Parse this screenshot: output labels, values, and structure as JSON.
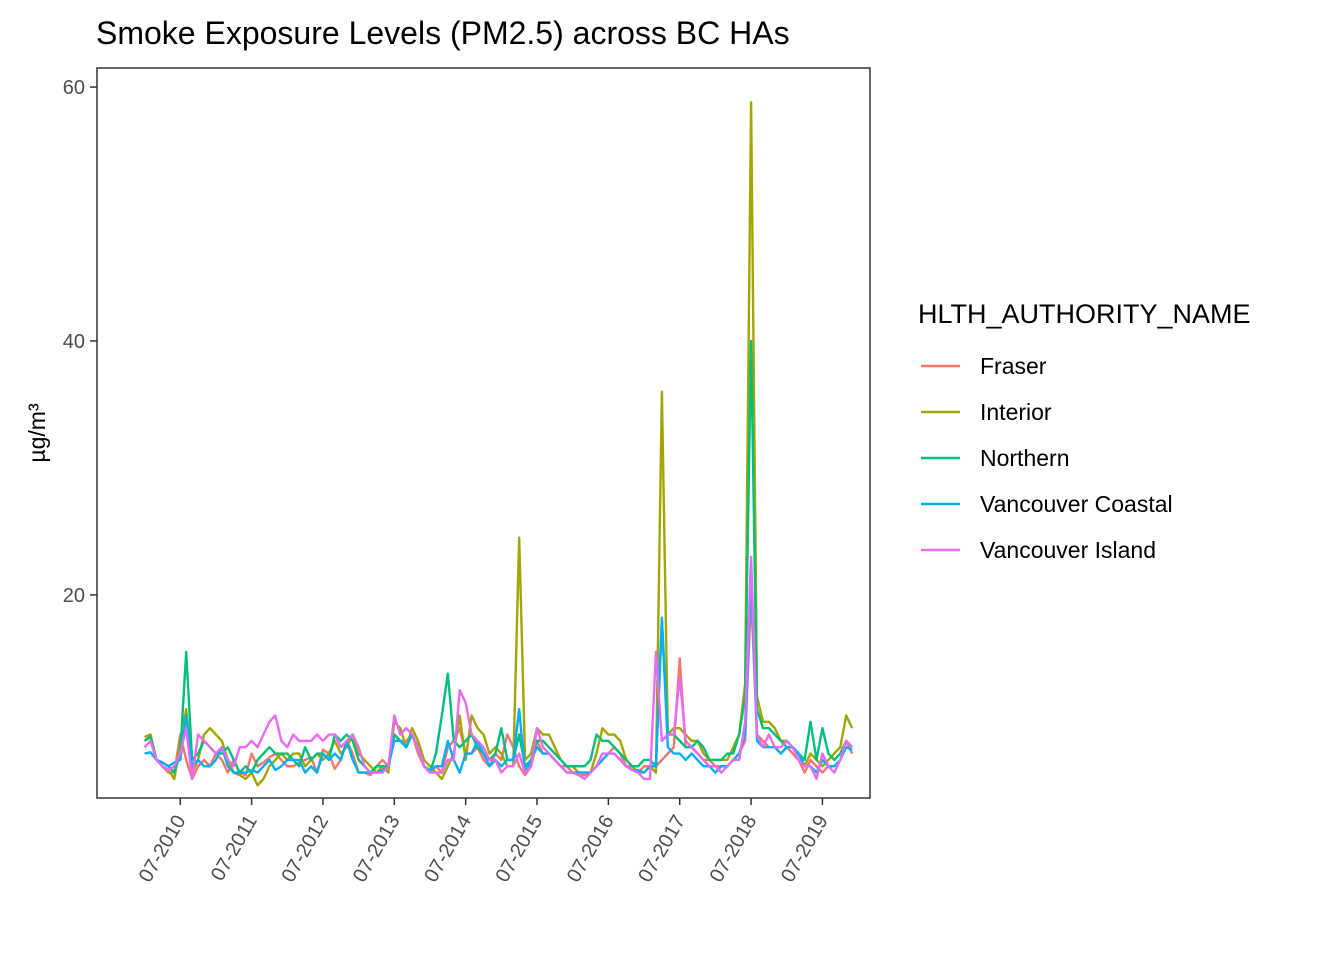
{
  "chart_data": {
    "type": "line",
    "title": "Smoke Exposure Levels (PM2.5) across BC HAs",
    "xlabel": "",
    "ylabel": "µg/m³",
    "ylim": [
      4,
      61.5
    ],
    "xlim": [
      "2009-05-01",
      "2020-03-01"
    ],
    "yticks": [
      20,
      40,
      60
    ],
    "xticks": [
      "2010-07",
      "2011-07",
      "2012-07",
      "2013-07",
      "2014-07",
      "2015-07",
      "2016-07",
      "2017-07",
      "2018-07",
      "2019-07"
    ],
    "xtick_labels": [
      "07-2010",
      "07-2011",
      "07-2012",
      "07-2013",
      "07-2014",
      "07-2015",
      "07-2016",
      "07-2017",
      "07-2018",
      "07-2019"
    ],
    "grid": false,
    "legend": {
      "title": "HLTH_AUTHORITY_NAME",
      "position": "right"
    },
    "x": [
      "2010-01",
      "2010-02",
      "2010-03",
      "2010-04",
      "2010-05",
      "2010-06",
      "2010-07",
      "2010-08",
      "2010-09",
      "2010-10",
      "2010-11",
      "2010-12",
      "2011-01",
      "2011-02",
      "2011-03",
      "2011-04",
      "2011-05",
      "2011-06",
      "2011-07",
      "2011-08",
      "2011-09",
      "2011-10",
      "2011-11",
      "2011-12",
      "2012-01",
      "2012-02",
      "2012-03",
      "2012-04",
      "2012-05",
      "2012-06",
      "2012-07",
      "2012-08",
      "2012-09",
      "2012-10",
      "2012-11",
      "2012-12",
      "2013-01",
      "2013-02",
      "2013-03",
      "2013-04",
      "2013-05",
      "2013-06",
      "2013-07",
      "2013-08",
      "2013-09",
      "2013-10",
      "2013-11",
      "2013-12",
      "2014-01",
      "2014-02",
      "2014-03",
      "2014-04",
      "2014-05",
      "2014-06",
      "2014-07",
      "2014-08",
      "2014-09",
      "2014-10",
      "2014-11",
      "2014-12",
      "2015-01",
      "2015-02",
      "2015-03",
      "2015-04",
      "2015-05",
      "2015-06",
      "2015-07",
      "2015-08",
      "2015-09",
      "2015-10",
      "2015-11",
      "2015-12",
      "2016-01",
      "2016-02",
      "2016-03",
      "2016-04",
      "2016-05",
      "2016-06",
      "2016-07",
      "2016-08",
      "2016-09",
      "2016-10",
      "2016-11",
      "2016-12",
      "2017-01",
      "2017-02",
      "2017-03",
      "2017-04",
      "2017-05",
      "2017-06",
      "2017-07",
      "2017-08",
      "2017-09",
      "2017-10",
      "2017-11",
      "2017-12",
      "2018-01",
      "2018-02",
      "2018-03",
      "2018-04",
      "2018-05",
      "2018-06",
      "2018-07",
      "2018-08",
      "2018-09",
      "2018-10",
      "2018-11",
      "2018-12",
      "2019-01",
      "2019-02",
      "2019-03",
      "2019-04",
      "2019-05",
      "2019-06",
      "2019-07",
      "2019-08",
      "2019-09",
      "2019-10",
      "2019-11",
      "2019-12"
    ],
    "series": [
      {
        "name": "Fraser",
        "color": "#F8766D",
        "values": [
          8.5,
          8.9,
          7.0,
          6.5,
          6.0,
          6.0,
          9.0,
          7.0,
          5.5,
          6.5,
          7.0,
          6.5,
          7.5,
          7.0,
          6.0,
          7.0,
          6.0,
          5.8,
          7.5,
          6.5,
          6.8,
          7.2,
          7.5,
          7.0,
          6.5,
          6.5,
          6.8,
          7.0,
          7.2,
          6.0,
          7.8,
          7.5,
          6.3,
          7.0,
          8.5,
          7.5,
          6.0,
          6.0,
          5.8,
          6.5,
          7.0,
          6.5,
          9.0,
          8.5,
          8.5,
          9.0,
          7.5,
          6.5,
          6.0,
          6.5,
          6.0,
          8.0,
          8.5,
          9.5,
          7.5,
          7.5,
          8.0,
          7.0,
          6.5,
          7.5,
          7.0,
          9.0,
          8.0,
          6.5,
          5.8,
          6.5,
          8.5,
          7.5,
          7.5,
          7.0,
          6.5,
          6.5,
          6.0,
          5.8,
          5.8,
          6.0,
          6.5,
          7.0,
          7.5,
          8.0,
          7.5,
          6.5,
          6.5,
          6.0,
          6.5,
          6.5,
          6.5,
          7.0,
          7.5,
          8.0,
          15.0,
          8.0,
          8.0,
          7.5,
          7.0,
          7.0,
          6.5,
          6.5,
          6.5,
          7.0,
          7.5,
          8.5,
          20.0,
          9.0,
          8.5,
          8.0,
          8.0,
          7.5,
          8.0,
          7.5,
          7.0,
          6.0,
          7.0,
          6.5,
          6.0,
          6.5,
          6.5,
          7.0,
          8.5,
          7.5
        ]
      },
      {
        "name": "Interior",
        "color": "#A3A500",
        "values": [
          8.8,
          9.0,
          7.0,
          6.5,
          6.2,
          5.5,
          8.5,
          11.0,
          6.0,
          7.0,
          9.0,
          9.5,
          9.0,
          8.5,
          7.0,
          6.0,
          5.8,
          5.5,
          6.0,
          5.0,
          5.5,
          6.5,
          7.0,
          7.5,
          7.0,
          7.5,
          7.5,
          6.5,
          7.0,
          7.5,
          7.0,
          7.5,
          8.5,
          7.5,
          8.0,
          9.0,
          7.5,
          7.0,
          6.5,
          6.0,
          6.5,
          6.0,
          10.0,
          9.5,
          8.0,
          9.5,
          8.5,
          7.0,
          6.5,
          6.0,
          5.5,
          6.5,
          7.5,
          10.5,
          7.0,
          10.5,
          9.5,
          9.0,
          7.5,
          8.0,
          7.5,
          6.5,
          6.5,
          24.5,
          7.0,
          7.5,
          9.5,
          9.0,
          9.0,
          8.0,
          7.0,
          6.5,
          6.5,
          6.0,
          6.0,
          6.0,
          7.5,
          9.5,
          9.0,
          9.0,
          8.5,
          7.0,
          6.5,
          6.0,
          6.0,
          6.5,
          6.0,
          36.0,
          9.0,
          9.5,
          9.5,
          9.0,
          8.5,
          8.5,
          7.5,
          7.0,
          7.0,
          7.0,
          7.0,
          8.0,
          9.0,
          13.0,
          58.8,
          12.0,
          10.0,
          10.0,
          9.5,
          8.5,
          8.5,
          8.0,
          7.5,
          6.5,
          7.5,
          7.0,
          6.5,
          7.0,
          7.5,
          8.0,
          10.5,
          9.5
        ]
      },
      {
        "name": "Northern",
        "color": "#00BF7D",
        "values": [
          8.5,
          8.8,
          7.0,
          6.8,
          6.5,
          6.0,
          7.5,
          15.5,
          7.0,
          7.5,
          8.5,
          8.0,
          7.5,
          7.5,
          8.0,
          7.0,
          6.0,
          6.5,
          6.0,
          7.0,
          7.5,
          8.0,
          7.5,
          7.5,
          7.5,
          7.0,
          6.5,
          8.0,
          7.0,
          7.5,
          7.5,
          7.0,
          9.0,
          8.5,
          9.0,
          8.5,
          7.0,
          6.5,
          6.0,
          6.5,
          6.5,
          6.5,
          9.0,
          8.5,
          8.0,
          9.0,
          8.0,
          6.5,
          6.0,
          7.5,
          10.5,
          13.8,
          8.5,
          8.0,
          8.5,
          9.0,
          8.0,
          7.5,
          7.0,
          7.5,
          9.5,
          7.0,
          7.0,
          9.0,
          6.5,
          7.0,
          8.5,
          8.5,
          8.0,
          7.5,
          7.0,
          6.5,
          6.5,
          6.5,
          6.5,
          7.0,
          9.0,
          8.5,
          8.5,
          8.0,
          7.5,
          7.0,
          6.5,
          6.5,
          7.0,
          7.0,
          6.5,
          18.0,
          9.0,
          9.0,
          8.5,
          8.0,
          8.0,
          8.5,
          8.0,
          7.0,
          7.0,
          7.0,
          7.5,
          7.5,
          9.0,
          12.0,
          40.0,
          11.0,
          9.5,
          9.5,
          9.0,
          8.5,
          8.0,
          8.0,
          7.5,
          7.0,
          10.0,
          7.0,
          9.5,
          7.5,
          7.0,
          7.5,
          8.5,
          8.0
        ]
      },
      {
        "name": "Vancouver Coastal",
        "color": "#00B0F6",
        "values": [
          7.5,
          7.6,
          7.0,
          6.8,
          6.5,
          6.8,
          7.0,
          10.5,
          6.5,
          7.0,
          6.5,
          6.5,
          7.0,
          8.0,
          6.5,
          6.0,
          6.0,
          6.0,
          6.2,
          6.0,
          6.5,
          7.0,
          6.2,
          6.5,
          7.0,
          7.0,
          7.0,
          6.0,
          6.5,
          6.0,
          7.5,
          7.0,
          7.5,
          7.0,
          8.5,
          7.0,
          6.0,
          6.0,
          6.0,
          6.0,
          6.2,
          6.5,
          8.5,
          8.5,
          8.0,
          9.0,
          8.0,
          6.5,
          6.2,
          6.5,
          6.5,
          8.5,
          7.0,
          6.0,
          7.5,
          7.5,
          8.5,
          7.5,
          6.5,
          7.0,
          6.5,
          7.0,
          7.0,
          11.0,
          6.0,
          7.0,
          8.0,
          7.5,
          7.5,
          7.0,
          6.5,
          6.0,
          6.0,
          6.0,
          6.0,
          6.0,
          6.5,
          7.0,
          7.5,
          7.5,
          7.0,
          6.5,
          6.2,
          6.2,
          6.0,
          6.5,
          6.5,
          18.2,
          8.0,
          7.5,
          7.5,
          7.0,
          7.5,
          7.0,
          6.5,
          6.5,
          6.0,
          6.5,
          6.5,
          7.0,
          7.5,
          9.0,
          21.5,
          8.5,
          8.0,
          8.0,
          8.0,
          7.5,
          8.0,
          8.0,
          7.5,
          6.5,
          6.5,
          6.0,
          7.0,
          6.5,
          6.5,
          7.0,
          8.0,
          7.8
        ]
      },
      {
        "name": "Vancouver Island",
        "color": "#E76BF3",
        "values": [
          8.0,
          8.5,
          7.0,
          6.5,
          6.2,
          6.5,
          7.5,
          9.5,
          5.5,
          9.0,
          8.5,
          8.0,
          7.5,
          8.0,
          7.0,
          6.5,
          8.0,
          8.0,
          8.5,
          8.0,
          9.0,
          10.0,
          10.5,
          8.5,
          8.0,
          9.0,
          8.5,
          8.5,
          8.5,
          9.0,
          8.5,
          9.0,
          9.0,
          8.0,
          8.5,
          9.0,
          8.0,
          6.5,
          6.0,
          6.0,
          6.0,
          6.5,
          10.5,
          9.0,
          9.5,
          9.0,
          8.0,
          6.5,
          6.0,
          6.0,
          6.0,
          7.0,
          7.0,
          12.5,
          11.5,
          9.0,
          8.5,
          8.0,
          7.0,
          7.0,
          6.0,
          6.5,
          6.5,
          7.5,
          6.0,
          6.5,
          9.5,
          8.0,
          7.5,
          7.0,
          6.5,
          6.0,
          6.0,
          5.8,
          5.5,
          6.0,
          6.5,
          7.5,
          7.5,
          7.5,
          7.0,
          6.5,
          6.2,
          6.0,
          5.5,
          5.5,
          15.5,
          8.5,
          9.0,
          9.0,
          13.5,
          8.5,
          8.0,
          7.5,
          7.0,
          6.5,
          6.5,
          6.0,
          6.5,
          7.0,
          7.0,
          10.0,
          23.0,
          9.0,
          8.0,
          9.0,
          8.0,
          8.0,
          8.5,
          8.0,
          7.0,
          6.5,
          6.5,
          5.5,
          7.5,
          6.5,
          6.0,
          7.0,
          8.5,
          8.0
        ]
      }
    ]
  }
}
